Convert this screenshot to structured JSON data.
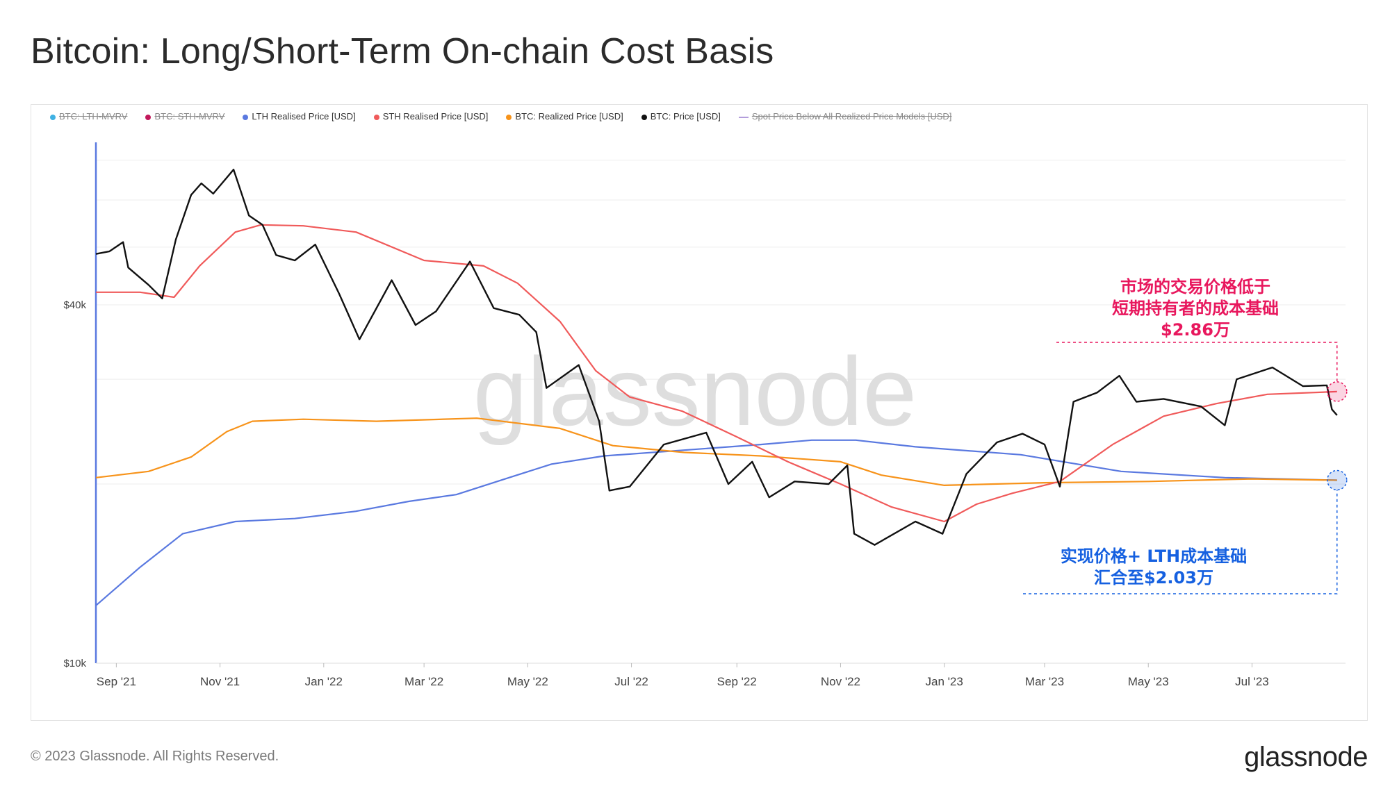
{
  "title": "Bitcoin: Long/Short-Term On-chain Cost Basis",
  "footer": "© 2023 Glassnode. All Rights Reserved.",
  "brand": "glassnode",
  "watermark": "glassnode",
  "legend": [
    {
      "label": "BTC: LTH-MVRV",
      "color": "#3fb1e3",
      "enabled": false,
      "shape": "dot"
    },
    {
      "label": "BTC: STH-MVRV",
      "color": "#c2185b",
      "enabled": false,
      "shape": "dot"
    },
    {
      "label": "LTH Realised Price [USD]",
      "color": "#5a79e0",
      "enabled": true,
      "shape": "dot"
    },
    {
      "label": "STH Realised Price [USD]",
      "color": "#f05a5a",
      "enabled": true,
      "shape": "dot"
    },
    {
      "label": "BTC: Realized Price [USD]",
      "color": "#f7931a",
      "enabled": true,
      "shape": "dot"
    },
    {
      "label": "BTC: Price [USD]",
      "color": "#111111",
      "enabled": true,
      "shape": "dot"
    },
    {
      "label": "Spot Price Below All Realized Price Models [USD]",
      "color": "#b39ddb",
      "enabled": false,
      "shape": "dash"
    }
  ],
  "annotations": {
    "sth": {
      "lines": [
        "市场的交易价格低于",
        "短期持有者的成本基础",
        "$2.86万"
      ],
      "color": "#e8175d"
    },
    "lth": {
      "lines": [
        "实现价格+ LTH成本基础",
        "汇合至$2.03万"
      ],
      "color": "#1560e0"
    }
  },
  "chart_data": {
    "type": "line",
    "yscale": "log",
    "ylim": [
      10000,
      75000
    ],
    "xlim": [
      "2021-08-20",
      "2023-08-25"
    ],
    "y_tick_labels": [
      "$10k",
      "$40k"
    ],
    "y_tick_values": [
      10000,
      40000
    ],
    "x_tick_labels": [
      "Sep '21",
      "Nov '21",
      "Jan '22",
      "Mar '22",
      "May '22",
      "Jul '22",
      "Sep '22",
      "Nov '22",
      "Jan '23",
      "Mar '23",
      "May '23",
      "Jul '23"
    ],
    "x_tick_values": [
      "2021-09-01",
      "2021-11-01",
      "2022-01-01",
      "2022-03-01",
      "2022-05-01",
      "2022-07-01",
      "2022-09-01",
      "2022-11-01",
      "2023-01-01",
      "2023-03-01",
      "2023-05-01",
      "2023-07-01"
    ],
    "series": [
      {
        "name": "BTC: Price [USD]",
        "color": "#111111",
        "x": [
          "2021-08-20",
          "2021-08-28",
          "2021-09-05",
          "2021-09-08",
          "2021-09-20",
          "2021-09-28",
          "2021-10-06",
          "2021-10-15",
          "2021-10-21",
          "2021-10-28",
          "2021-11-09",
          "2021-11-18",
          "2021-11-26",
          "2021-12-04",
          "2021-12-15",
          "2021-12-27",
          "2022-01-10",
          "2022-01-22",
          "2022-02-10",
          "2022-02-24",
          "2022-03-08",
          "2022-03-28",
          "2022-04-11",
          "2022-04-26",
          "2022-05-06",
          "2022-05-12",
          "2022-05-31",
          "2022-06-12",
          "2022-06-18",
          "2022-06-30",
          "2022-07-20",
          "2022-08-14",
          "2022-08-27",
          "2022-09-10",
          "2022-09-20",
          "2022-10-05",
          "2022-10-25",
          "2022-11-05",
          "2022-11-09",
          "2022-11-21",
          "2022-12-15",
          "2022-12-31",
          "2023-01-14",
          "2023-02-01",
          "2023-02-16",
          "2023-03-01",
          "2023-03-10",
          "2023-03-18",
          "2023-04-01",
          "2023-04-14",
          "2023-04-24",
          "2023-05-10",
          "2023-06-01",
          "2023-06-15",
          "2023-06-22",
          "2023-07-13",
          "2023-07-31",
          "2023-08-14",
          "2023-08-17",
          "2023-08-20"
        ],
        "values": [
          48700,
          49200,
          51000,
          46200,
          43200,
          41000,
          51500,
          61200,
          64000,
          61500,
          67500,
          56500,
          54500,
          48500,
          47500,
          50500,
          41800,
          35000,
          44000,
          37000,
          39000,
          47300,
          39500,
          38500,
          36000,
          29000,
          31700,
          25500,
          19500,
          19800,
          23300,
          24400,
          20000,
          21800,
          19000,
          20200,
          20000,
          21500,
          16500,
          15800,
          17300,
          16500,
          20800,
          23500,
          24300,
          23300,
          19800,
          27500,
          28500,
          30400,
          27500,
          27800,
          27000,
          25100,
          30000,
          31400,
          29200,
          29300,
          26700,
          26100
        ]
      },
      {
        "name": "STH Realised Price [USD]",
        "color": "#f05a5a",
        "x": [
          "2021-08-20",
          "2021-09-15",
          "2021-10-05",
          "2021-10-20",
          "2021-11-10",
          "2021-11-25",
          "2021-12-20",
          "2022-01-20",
          "2022-03-01",
          "2022-04-05",
          "2022-04-25",
          "2022-05-20",
          "2022-06-10",
          "2022-06-30",
          "2022-07-31",
          "2022-09-01",
          "2022-10-01",
          "2022-11-01",
          "2022-12-01",
          "2023-01-01",
          "2023-01-20",
          "2023-02-10",
          "2023-03-10",
          "2023-04-10",
          "2023-05-10",
          "2023-06-10",
          "2023-07-10",
          "2023-08-20"
        ],
        "values": [
          42000,
          42000,
          41200,
          46500,
          53000,
          54500,
          54300,
          53000,
          47500,
          46500,
          43500,
          37500,
          31000,
          28000,
          26500,
          24000,
          21800,
          20000,
          18300,
          17300,
          18500,
          19300,
          20200,
          23300,
          26000,
          27300,
          28300,
          28600
        ]
      },
      {
        "name": "BTC: Realized Price [USD]",
        "color": "#f7931a",
        "x": [
          "2021-08-20",
          "2021-09-20",
          "2021-10-15",
          "2021-11-05",
          "2021-11-20",
          "2021-12-20",
          "2022-02-01",
          "2022-04-01",
          "2022-05-20",
          "2022-06-20",
          "2022-08-01",
          "2022-09-15",
          "2022-11-01",
          "2022-11-25",
          "2023-01-01",
          "2023-03-01",
          "2023-05-01",
          "2023-07-01",
          "2023-08-20"
        ],
        "values": [
          20500,
          21000,
          22200,
          24500,
          25500,
          25700,
          25500,
          25800,
          24800,
          23200,
          22600,
          22300,
          21800,
          20700,
          19900,
          20100,
          20200,
          20400,
          20300
        ]
      },
      {
        "name": "LTH Realised Price [USD]",
        "color": "#5a79e0",
        "x": [
          "2021-08-20",
          "2021-09-15",
          "2021-10-10",
          "2021-11-10",
          "2021-12-15",
          "2022-01-20",
          "2022-02-20",
          "2022-03-20",
          "2022-04-20",
          "2022-05-15",
          "2022-06-15",
          "2022-08-01",
          "2022-09-15",
          "2022-10-15",
          "2022-11-10",
          "2022-12-15",
          "2023-02-15",
          "2023-04-15",
          "2023-06-15",
          "2023-08-20"
        ],
        "values": [
          12500,
          14500,
          16500,
          17300,
          17500,
          18000,
          18700,
          19200,
          20500,
          21600,
          22300,
          22800,
          23300,
          23700,
          23700,
          23100,
          22400,
          21000,
          20500,
          20300
        ]
      }
    ],
    "grid": true
  }
}
